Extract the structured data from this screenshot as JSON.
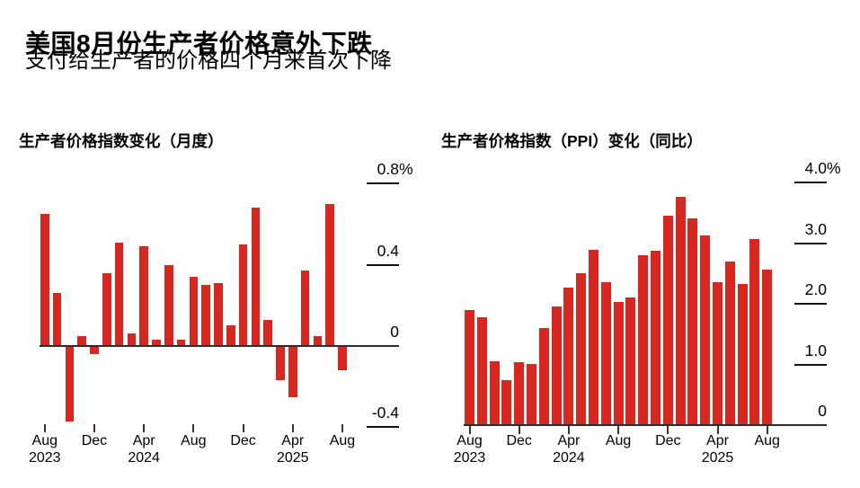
{
  "header": {
    "title": "美国8月份生产者价格意外下跌",
    "subtitle": "支付给生产者的价格四个月来首次下降"
  },
  "colors": {
    "bar": "#d9261f",
    "axis": "#2b2b2b",
    "tick": "#111111",
    "text": "#000000",
    "background": "#ffffff"
  },
  "chart_data": [
    {
      "type": "bar",
      "title": "生产者价格指数变化（月度）",
      "xlabel": "",
      "ylabel": "",
      "unit": "%",
      "ylim": [
        -0.45,
        0.93
      ],
      "grid": false,
      "legend": "none",
      "y_axis_position": "right",
      "categories": [
        "Aug 2023",
        "Sep 2023",
        "Oct 2023",
        "Nov 2023",
        "Dec 2023",
        "Jan 2024",
        "Feb 2024",
        "Mar 2024",
        "Apr 2024",
        "May 2024",
        "Jun 2024",
        "Jul 2024",
        "Aug 2024",
        "Sep 2024",
        "Oct 2024",
        "Nov 2024",
        "Dec 2024",
        "Jan 2025",
        "Feb 2025",
        "Mar 2025",
        "Apr 2025",
        "May 2025",
        "Jun 2025",
        "Jul 2025",
        "Aug 2025"
      ],
      "values": [
        0.65,
        0.26,
        -0.37,
        0.05,
        -0.04,
        0.36,
        0.51,
        0.06,
        0.49,
        0.03,
        0.4,
        0.03,
        0.34,
        0.3,
        0.31,
        0.1,
        0.5,
        0.68,
        0.13,
        -0.17,
        -0.25,
        0.37,
        0.05,
        0.7,
        -0.12
      ],
      "yticks": [
        {
          "value": 0.8,
          "label": "0.8",
          "suffix": "%"
        },
        {
          "value": 0.4,
          "label": "0.4",
          "suffix": ""
        },
        {
          "value": 0,
          "label": "0",
          "suffix": ""
        },
        {
          "value": -0.4,
          "label": "-0.4",
          "suffix": ""
        }
      ],
      "xticks": [
        {
          "index": 0,
          "month": "Aug",
          "year": "2023"
        },
        {
          "index": 4,
          "month": "Dec",
          "year": ""
        },
        {
          "index": 8,
          "month": "Apr",
          "year": "2024"
        },
        {
          "index": 12,
          "month": "Aug",
          "year": ""
        },
        {
          "index": 16,
          "month": "Dec",
          "year": ""
        },
        {
          "index": 20,
          "month": "Apr",
          "year": "2025"
        },
        {
          "index": 24,
          "month": "Aug",
          "year": ""
        }
      ]
    },
    {
      "type": "bar",
      "title": "生产者价格指数（PPI）变化（同比）",
      "xlabel": "",
      "ylabel": "",
      "unit": "%",
      "ylim": [
        0,
        4.45
      ],
      "grid": false,
      "legend": "none",
      "y_axis_position": "right",
      "categories": [
        "Aug 2023",
        "Sep 2023",
        "Oct 2023",
        "Nov 2023",
        "Dec 2023",
        "Jan 2024",
        "Feb 2024",
        "Mar 2024",
        "Apr 2024",
        "May 2024",
        "Jun 2024",
        "Jul 2024",
        "Aug 2024",
        "Sep 2024",
        "Oct 2024",
        "Nov 2024",
        "Dec 2024",
        "Jan 2025",
        "Feb 2025",
        "Mar 2025",
        "Apr 2025",
        "May 2025",
        "Jun 2025",
        "Jul 2025",
        "Aug 2025"
      ],
      "values": [
        1.9,
        1.78,
        1.05,
        0.74,
        1.04,
        1.01,
        1.6,
        1.95,
        2.26,
        2.51,
        2.89,
        2.36,
        2.03,
        2.11,
        2.8,
        2.87,
        3.45,
        3.76,
        3.41,
        3.12,
        2.35,
        2.7,
        2.33,
        3.06,
        2.56
      ],
      "yticks": [
        {
          "value": 4.0,
          "label": "4.0",
          "suffix": "%"
        },
        {
          "value": 3.0,
          "label": "3.0",
          "suffix": ""
        },
        {
          "value": 2.0,
          "label": "2.0",
          "suffix": ""
        },
        {
          "value": 1.0,
          "label": "1.0",
          "suffix": ""
        },
        {
          "value": 0,
          "label": "0",
          "suffix": ""
        }
      ],
      "xticks": [
        {
          "index": 0,
          "month": "Aug",
          "year": "2023"
        },
        {
          "index": 4,
          "month": "Dec",
          "year": ""
        },
        {
          "index": 8,
          "month": "Apr",
          "year": "2024"
        },
        {
          "index": 12,
          "month": "Aug",
          "year": ""
        },
        {
          "index": 16,
          "month": "Dec",
          "year": ""
        },
        {
          "index": 20,
          "month": "Apr",
          "year": "2025"
        },
        {
          "index": 24,
          "month": "Aug",
          "year": ""
        }
      ]
    }
  ]
}
